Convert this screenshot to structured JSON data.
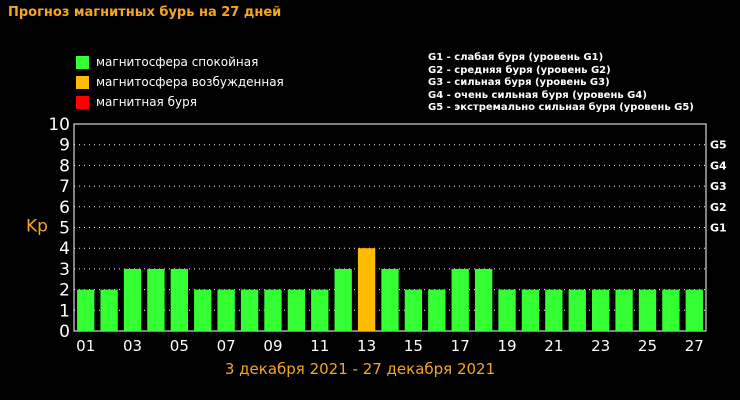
{
  "title": "Прогноз магнитных бурь на 27 дней",
  "legend": [
    {
      "label": "магнитосфера спокойная",
      "color": "#33ff33"
    },
    {
      "label": "магнитосфера возбужденная",
      "color": "#ffbb00"
    },
    {
      "label": "магнитная буря",
      "color": "#ff0000"
    }
  ],
  "g_levels": [
    "G1 - слабая буря (уровень G1)",
    "G2 - средняя буря (уровень G2)",
    "G3 - сильная буря (уровень G3)",
    "G4 - очень сильная буря (уровень G4)",
    "G5 - экстремально сильная буря (уровень G5)"
  ],
  "chart_data": {
    "type": "bar",
    "title": "Прогноз магнитных бурь на 27 дней",
    "subtitle": "3 декабря 2021 - 27 декабря 2021",
    "ylabel": "Kp",
    "ylim": [
      0,
      10
    ],
    "y_ticks": [
      "0",
      "1",
      "2",
      "3",
      "4",
      "5",
      "6",
      "7",
      "8",
      "9",
      "10"
    ],
    "right_ticks": [
      {
        "value": 5,
        "label": "G1"
      },
      {
        "value": 6,
        "label": "G2"
      },
      {
        "value": 7,
        "label": "G3"
      },
      {
        "value": 8,
        "label": "G4"
      },
      {
        "value": 9,
        "label": "G5"
      }
    ],
    "x_tick_labels": [
      "01",
      "03",
      "05",
      "07",
      "09",
      "11",
      "13",
      "15",
      "17",
      "19",
      "21",
      "23",
      "25",
      "27"
    ],
    "categories": [
      "01",
      "02",
      "03",
      "04",
      "05",
      "06",
      "07",
      "08",
      "09",
      "10",
      "11",
      "12",
      "13",
      "14",
      "15",
      "16",
      "17",
      "18",
      "19",
      "20",
      "21",
      "22",
      "23",
      "24",
      "25",
      "26",
      "27"
    ],
    "values": [
      2,
      2,
      3,
      3,
      3,
      2,
      2,
      2,
      2,
      2,
      2,
      3,
      4,
      3,
      2,
      2,
      3,
      3,
      2,
      2,
      2,
      2,
      2,
      2,
      2,
      2,
      2
    ],
    "colors": {
      "quiet": "#33ff33",
      "active": "#ffbb00",
      "storm": "#ff0000"
    },
    "grid": "dotted horizontal"
  }
}
